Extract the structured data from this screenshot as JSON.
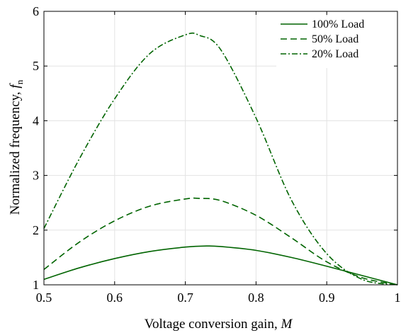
{
  "chart_data": {
    "type": "line",
    "xlabel": "Voltage conversion gain, ",
    "xlabel_var": "M",
    "ylabel": "Normalized frequency, ",
    "ylabel_var": "f",
    "ylabel_sub": "n",
    "xlim": [
      0.5,
      1.0
    ],
    "ylim": [
      1,
      6
    ],
    "xticks": [
      0.5,
      0.6,
      0.7,
      0.8,
      0.9,
      1.0
    ],
    "xtick_labels": [
      "0.5",
      "0.6",
      "0.7",
      "0.8",
      "0.9",
      "1"
    ],
    "yticks": [
      1,
      2,
      3,
      4,
      5,
      6
    ],
    "ytick_labels": [
      "1",
      "2",
      "3",
      "4",
      "5",
      "6"
    ],
    "grid": true,
    "legend_position": "top-right",
    "color": "#006400",
    "series": [
      {
        "name": "100% Load",
        "dash": "solid",
        "x": [
          0.5,
          0.55,
          0.6,
          0.65,
          0.7,
          0.73,
          0.75,
          0.8,
          0.85,
          0.9,
          0.95,
          1.0
        ],
        "y": [
          1.1,
          1.31,
          1.48,
          1.61,
          1.69,
          1.71,
          1.7,
          1.63,
          1.5,
          1.34,
          1.17,
          1.0
        ]
      },
      {
        "name": "50% Load",
        "dash": "dashed",
        "x": [
          0.5,
          0.55,
          0.6,
          0.65,
          0.7,
          0.72,
          0.75,
          0.8,
          0.85,
          0.9,
          0.95,
          1.0
        ],
        "y": [
          1.28,
          1.78,
          2.17,
          2.44,
          2.57,
          2.58,
          2.54,
          2.27,
          1.86,
          1.42,
          1.13,
          1.0
        ]
      },
      {
        "name": "20% Load",
        "dash": "dashdot",
        "x": [
          0.5,
          0.55,
          0.6,
          0.65,
          0.7,
          0.72,
          0.75,
          0.8,
          0.85,
          0.9,
          0.95,
          1.0
        ],
        "y": [
          2.03,
          3.3,
          4.4,
          5.23,
          5.57,
          5.56,
          5.3,
          4.05,
          2.55,
          1.57,
          1.1,
          1.0
        ]
      }
    ]
  }
}
